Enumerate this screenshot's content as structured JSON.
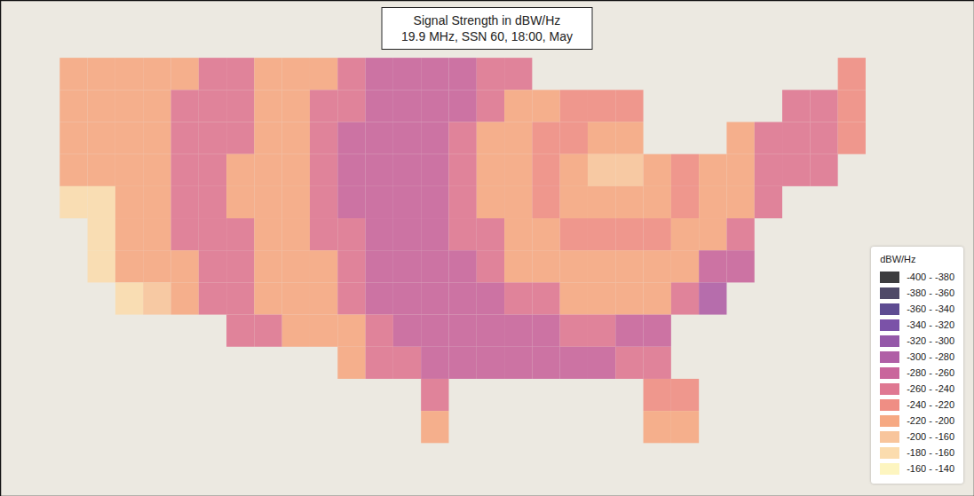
{
  "chart_data": {
    "type": "heatmap",
    "title": "Signal Strength in dBW/Hz",
    "subtitle": "19.9 MHz, SSN 60, 18:00, May",
    "xlim": [
      -129.3,
      -59.2
    ],
    "ylim": [
      21.7,
      52.6
    ],
    "tick_labels": false,
    "legend": "bottom-right",
    "cells": {
      "lon": [
        -124,
        -122,
        -120,
        -118,
        -116,
        -114,
        -112,
        -110,
        -108,
        -106,
        -104,
        -102,
        -100,
        -98,
        -96,
        -94,
        -92,
        -90,
        -88,
        -86,
        -84,
        -82,
        -80,
        -78,
        -76,
        -74,
        -72,
        -70,
        -68
      ],
      "lat": [
        48,
        46,
        44,
        42,
        40,
        38,
        36,
        34,
        32,
        30,
        28,
        26
      ],
      "values": [
        [
          -205,
          -205,
          -215,
          -215,
          -215,
          -245,
          -245,
          -215,
          -215,
          -215,
          -245,
          -270,
          -270,
          -270,
          -270,
          -250,
          -250,
          null,
          null,
          null,
          null,
          null,
          null,
          null,
          null,
          null,
          null,
          null,
          -230
        ],
        [
          -205,
          -205,
          -215,
          -215,
          -245,
          -245,
          -245,
          -215,
          -215,
          -245,
          -245,
          -270,
          -270,
          -270,
          -270,
          -250,
          -210,
          -210,
          -225,
          -225,
          -225,
          null,
          null,
          null,
          null,
          null,
          -245,
          -245,
          -230
        ],
        [
          -205,
          -205,
          -215,
          -215,
          -245,
          -245,
          -245,
          -215,
          -215,
          -245,
          -270,
          -270,
          -270,
          -270,
          -250,
          -210,
          -210,
          -225,
          -225,
          -205,
          -205,
          null,
          null,
          null,
          -215,
          -245,
          -245,
          -245,
          -230
        ],
        [
          -205,
          -205,
          -215,
          -215,
          -245,
          -245,
          -215,
          -215,
          -215,
          -245,
          -270,
          -270,
          -270,
          -270,
          -250,
          -210,
          -210,
          -225,
          -205,
          -185,
          -185,
          -205,
          -225,
          -210,
          -210,
          -250,
          -245,
          -245,
          null
        ],
        [
          -170,
          -170,
          -215,
          -215,
          -245,
          -245,
          -215,
          -215,
          -215,
          -245,
          -270,
          -270,
          -270,
          -270,
          -250,
          -210,
          -210,
          -225,
          -205,
          -205,
          -205,
          -205,
          -225,
          -210,
          -210,
          -250,
          null,
          null,
          null
        ],
        [
          null,
          -170,
          -215,
          -215,
          -245,
          -245,
          -245,
          -215,
          -215,
          -245,
          -245,
          -270,
          -270,
          -270,
          -250,
          -250,
          -210,
          -210,
          -225,
          -225,
          -225,
          -225,
          -210,
          -210,
          -250,
          null,
          null,
          null,
          null
        ],
        [
          null,
          -170,
          -215,
          -215,
          -215,
          -245,
          -245,
          -215,
          -215,
          -215,
          -245,
          -270,
          -270,
          -270,
          -270,
          -250,
          -210,
          -210,
          -210,
          -210,
          -210,
          -210,
          -210,
          -270,
          -280,
          null,
          null,
          null,
          null
        ],
        [
          null,
          null,
          -170,
          -185,
          -215,
          -245,
          -245,
          -215,
          -215,
          -215,
          -245,
          -270,
          -270,
          -270,
          -270,
          -270,
          -250,
          -250,
          -210,
          -210,
          -210,
          -210,
          -250,
          -290,
          null,
          null,
          null,
          null,
          null
        ],
        [
          null,
          null,
          null,
          null,
          null,
          null,
          -245,
          -245,
          -215,
          -215,
          -215,
          -245,
          -270,
          -270,
          -270,
          -270,
          -270,
          -270,
          -250,
          -250,
          -270,
          -270,
          null,
          null,
          null,
          null,
          null,
          null,
          null
        ],
        [
          null,
          null,
          null,
          null,
          null,
          null,
          null,
          null,
          null,
          null,
          -215,
          -245,
          -245,
          -270,
          -270,
          -270,
          -270,
          -270,
          -270,
          -270,
          -250,
          -245,
          null,
          null,
          null,
          null,
          null,
          null,
          null
        ],
        [
          null,
          null,
          null,
          null,
          null,
          null,
          null,
          null,
          null,
          null,
          null,
          null,
          null,
          -245,
          null,
          null,
          null,
          null,
          null,
          null,
          null,
          -230,
          -230,
          null,
          null,
          null,
          null,
          null,
          null
        ],
        [
          null,
          null,
          null,
          null,
          null,
          null,
          null,
          null,
          null,
          null,
          null,
          null,
          null,
          -215,
          null,
          null,
          null,
          null,
          null,
          null,
          null,
          -215,
          -215,
          null,
          null,
          null,
          null,
          null,
          null
        ]
      ]
    },
    "color_bar": {
      "title": "dBW/Hz",
      "bins": [
        {
          "min": -400,
          "max": -380,
          "label": "-400 - -380",
          "color": "#3d3d3f"
        },
        {
          "min": -380,
          "max": -360,
          "label": "-380 - -360",
          "color": "#4f4a68"
        },
        {
          "min": -360,
          "max": -340,
          "label": "-360 - -340",
          "color": "#5e4c92"
        },
        {
          "min": -340,
          "max": -320,
          "label": "-340 - -320",
          "color": "#7b52a8"
        },
        {
          "min": -320,
          "max": -300,
          "label": "-320 - -300",
          "color": "#9558a9"
        },
        {
          "min": -300,
          "max": -280,
          "label": "-300 - -280",
          "color": "#b05fa6"
        },
        {
          "min": -280,
          "max": -260,
          "label": "-280 - -260",
          "color": "#c9669c"
        },
        {
          "min": -260,
          "max": -240,
          "label": "-260 - -240",
          "color": "#df7892"
        },
        {
          "min": -240,
          "max": -220,
          "label": "-240 - -220",
          "color": "#ef8e84"
        },
        {
          "min": -220,
          "max": -200,
          "label": "-220 - -200",
          "color": "#f6a983"
        },
        {
          "min": -200,
          "max": -160,
          "label": "-200 - -160",
          "color": "#f8c59c"
        },
        {
          "min": -180,
          "max": -160,
          "label": "-180 - -160",
          "color": "#fbdcae"
        },
        {
          "min": -160,
          "max": -140,
          "label": "-160 - -140",
          "color": "#fdf5c0"
        }
      ]
    }
  }
}
